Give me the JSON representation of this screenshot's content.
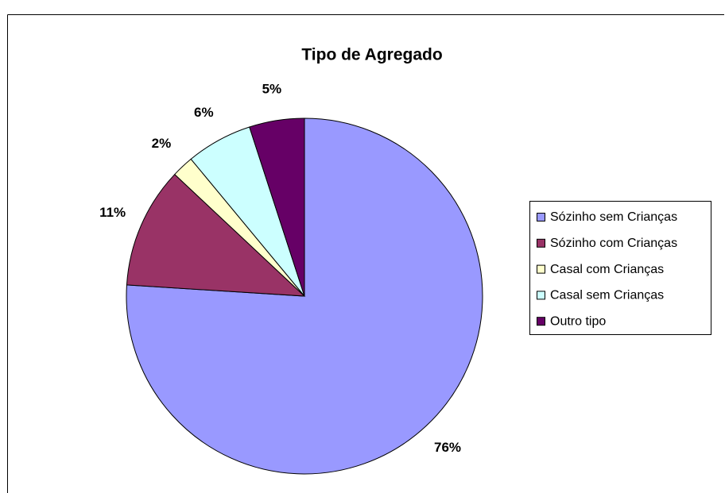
{
  "chart_data": {
    "type": "pie",
    "title": "Tipo de Agregado",
    "categories": [
      "Sózinho sem Crianças",
      "Sózinho com Crianças",
      "Casal com Crianças",
      "Casal sem Crianças",
      "Outro tipo"
    ],
    "values": [
      76,
      11,
      2,
      6,
      5
    ],
    "value_labels": [
      "76%",
      "11%",
      "2%",
      "6%",
      "5%"
    ],
    "colors": [
      "#9999ff",
      "#993366",
      "#ffffcc",
      "#ccffff",
      "#660066"
    ],
    "legend": "right"
  }
}
